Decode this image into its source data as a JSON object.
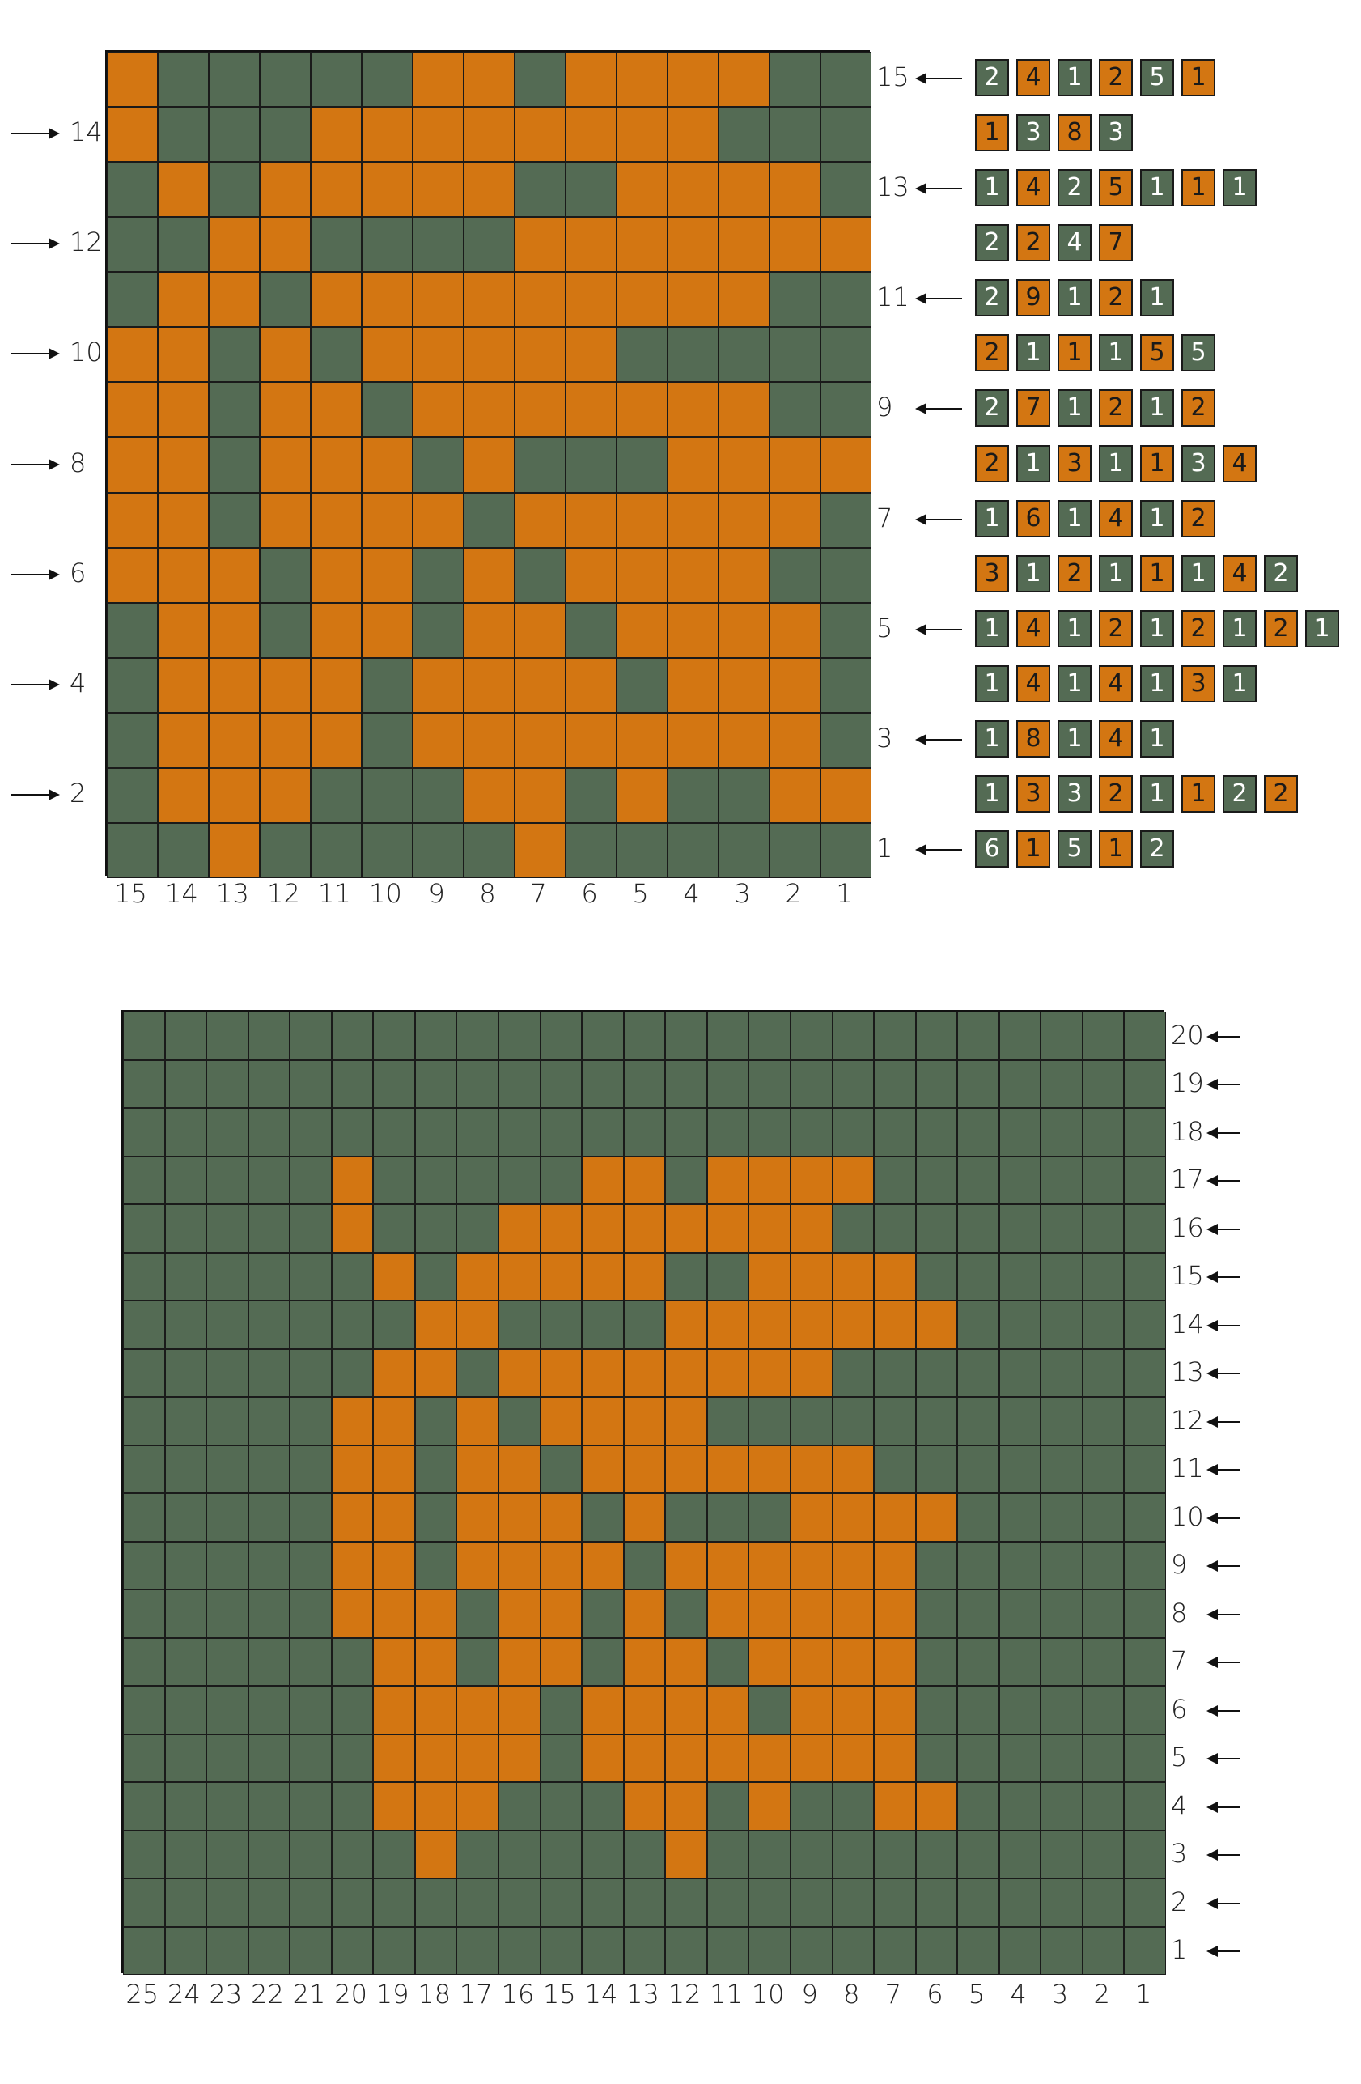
{
  "colors": {
    "orange": "#d37612",
    "green": "#546b54",
    "line": "#1a1a1a"
  },
  "chart1": {
    "rows": [
      "OGGGGGOOGOOOOGG",
      "OGGGOOOOOOOOGGG",
      "GOGOOOOOGGOOOOG",
      "GGOOGGGGOOOOOOO",
      "GOOGOOOOOOOOOGG",
      "OOGOGOOOOOGGGGG",
      "OOGOOGOOOOOOOGG",
      "OOGOOOGOGGGOOOO",
      "OOGOOOOGOOOOOOG",
      "OOOGOOGOGOOOOGG",
      "GOOGOOGOOGOOOOG",
      "GOOOOGOOOOGOOOG",
      "GOOOOGOOOOOOOOG",
      "GOOOGGGOOGOGGOO",
      "GGOGGGGGOGGGGGG"
    ],
    "row_numbers": [
      "15",
      "14",
      "13",
      "12",
      "11",
      "10",
      "9",
      "8",
      "7",
      "6",
      "5",
      "4",
      "3",
      "2",
      "1"
    ],
    "col_numbers": [
      "15",
      "14",
      "13",
      "12",
      "11",
      "10",
      "9",
      "8",
      "7",
      "6",
      "5",
      "4",
      "3",
      "2",
      "1"
    ],
    "counts": [
      {
        "start": "G",
        "values": [
          "2",
          "4",
          "1",
          "2",
          "5",
          "1"
        ]
      },
      {
        "start": "O",
        "values": [
          "1",
          "3",
          "8",
          "3"
        ]
      },
      {
        "start": "G",
        "values": [
          "1",
          "4",
          "2",
          "5",
          "1",
          "1",
          "1"
        ]
      },
      {
        "start": "G",
        "values": [
          "2",
          "2",
          "4",
          "7"
        ]
      },
      {
        "start": "G",
        "values": [
          "2",
          "9",
          "1",
          "2",
          "1"
        ]
      },
      {
        "start": "O",
        "values": [
          "2",
          "1",
          "1",
          "1",
          "5",
          "5"
        ]
      },
      {
        "start": "G",
        "values": [
          "2",
          "7",
          "1",
          "2",
          "1",
          "2"
        ]
      },
      {
        "start": "O",
        "values": [
          "2",
          "1",
          "3",
          "1",
          "1",
          "3",
          "4"
        ]
      },
      {
        "start": "G",
        "values": [
          "1",
          "6",
          "1",
          "4",
          "1",
          "2"
        ]
      },
      {
        "start": "O",
        "values": [
          "3",
          "1",
          "2",
          "1",
          "1",
          "1",
          "4",
          "2"
        ]
      },
      {
        "start": "G",
        "values": [
          "1",
          "4",
          "1",
          "2",
          "1",
          "2",
          "1",
          "2",
          "1"
        ]
      },
      {
        "start": "G",
        "values": [
          "1",
          "4",
          "1",
          "4",
          "1",
          "3",
          "1"
        ]
      },
      {
        "start": "G",
        "values": [
          "1",
          "8",
          "1",
          "4",
          "1"
        ]
      },
      {
        "start": "G",
        "values": [
          "1",
          "3",
          "3",
          "2",
          "1",
          "1",
          "2",
          "2"
        ]
      },
      {
        "start": "G",
        "values": [
          "6",
          "1",
          "5",
          "1",
          "2"
        ]
      }
    ]
  },
  "chart2": {
    "rows": [
      "GGGGGGGGGGGGGGGGGGGGGGGGG",
      "GGGGGGGGGGGGGGGGGGGGGGGGG",
      "GGGGGGGGGGGGGGGGGGGGGGGGG",
      "GGGGGOGGGGGOOGOOOOGGGGGGG",
      "GGGGGOGGGOOOOOOOOGGGGGGGG",
      "GGGGGGOGOOOOOGGOOOOGGGGGG",
      "GGGGGGGOOGGGGOOOOOOOGGGGG",
      "GGGGGGOOGOOOOOOOOGGGGGGGG",
      "GGGGGOOGOGOOOOGGGGGGGGGGG",
      "GGGGGOOGOOGOOOOOOOGGGGGGG",
      "GGGGGOOGOOOGOGGGOOOOGGGGG",
      "GGGGGOOGOOOOGOOOOOOGGGGGG",
      "GGGGGOOOGOOGOGOOOOOGGGGGG",
      "GGGGGGOOGOOGOOGOOOOGGGGGG",
      "GGGGGGOOOOGOOOOGOOOGGGGGG",
      "GGGGGGOOOOGOOOOOOOOGGGGGG",
      "GGGGGGOOOGGGOOGOGGOOGGGGG",
      "GGGGGGGOGGGGGOGGGGGGGGGGG",
      "GGGGGGGGGGGGGGGGGGGGGGGGG",
      "GGGGGGGGGGGGGGGGGGGGGGGGG"
    ],
    "row_numbers": [
      "20",
      "19",
      "18",
      "17",
      "16",
      "15",
      "14",
      "13",
      "12",
      "11",
      "10",
      "9",
      "8",
      "7",
      "6",
      "5",
      "4",
      "3",
      "2",
      "1"
    ],
    "col_numbers": [
      "25",
      "24",
      "23",
      "22",
      "21",
      "20",
      "19",
      "18",
      "17",
      "16",
      "15",
      "14",
      "13",
      "12",
      "11",
      "10",
      "9",
      "8",
      "7",
      "6",
      "5",
      "4",
      "3",
      "2",
      "1"
    ]
  }
}
